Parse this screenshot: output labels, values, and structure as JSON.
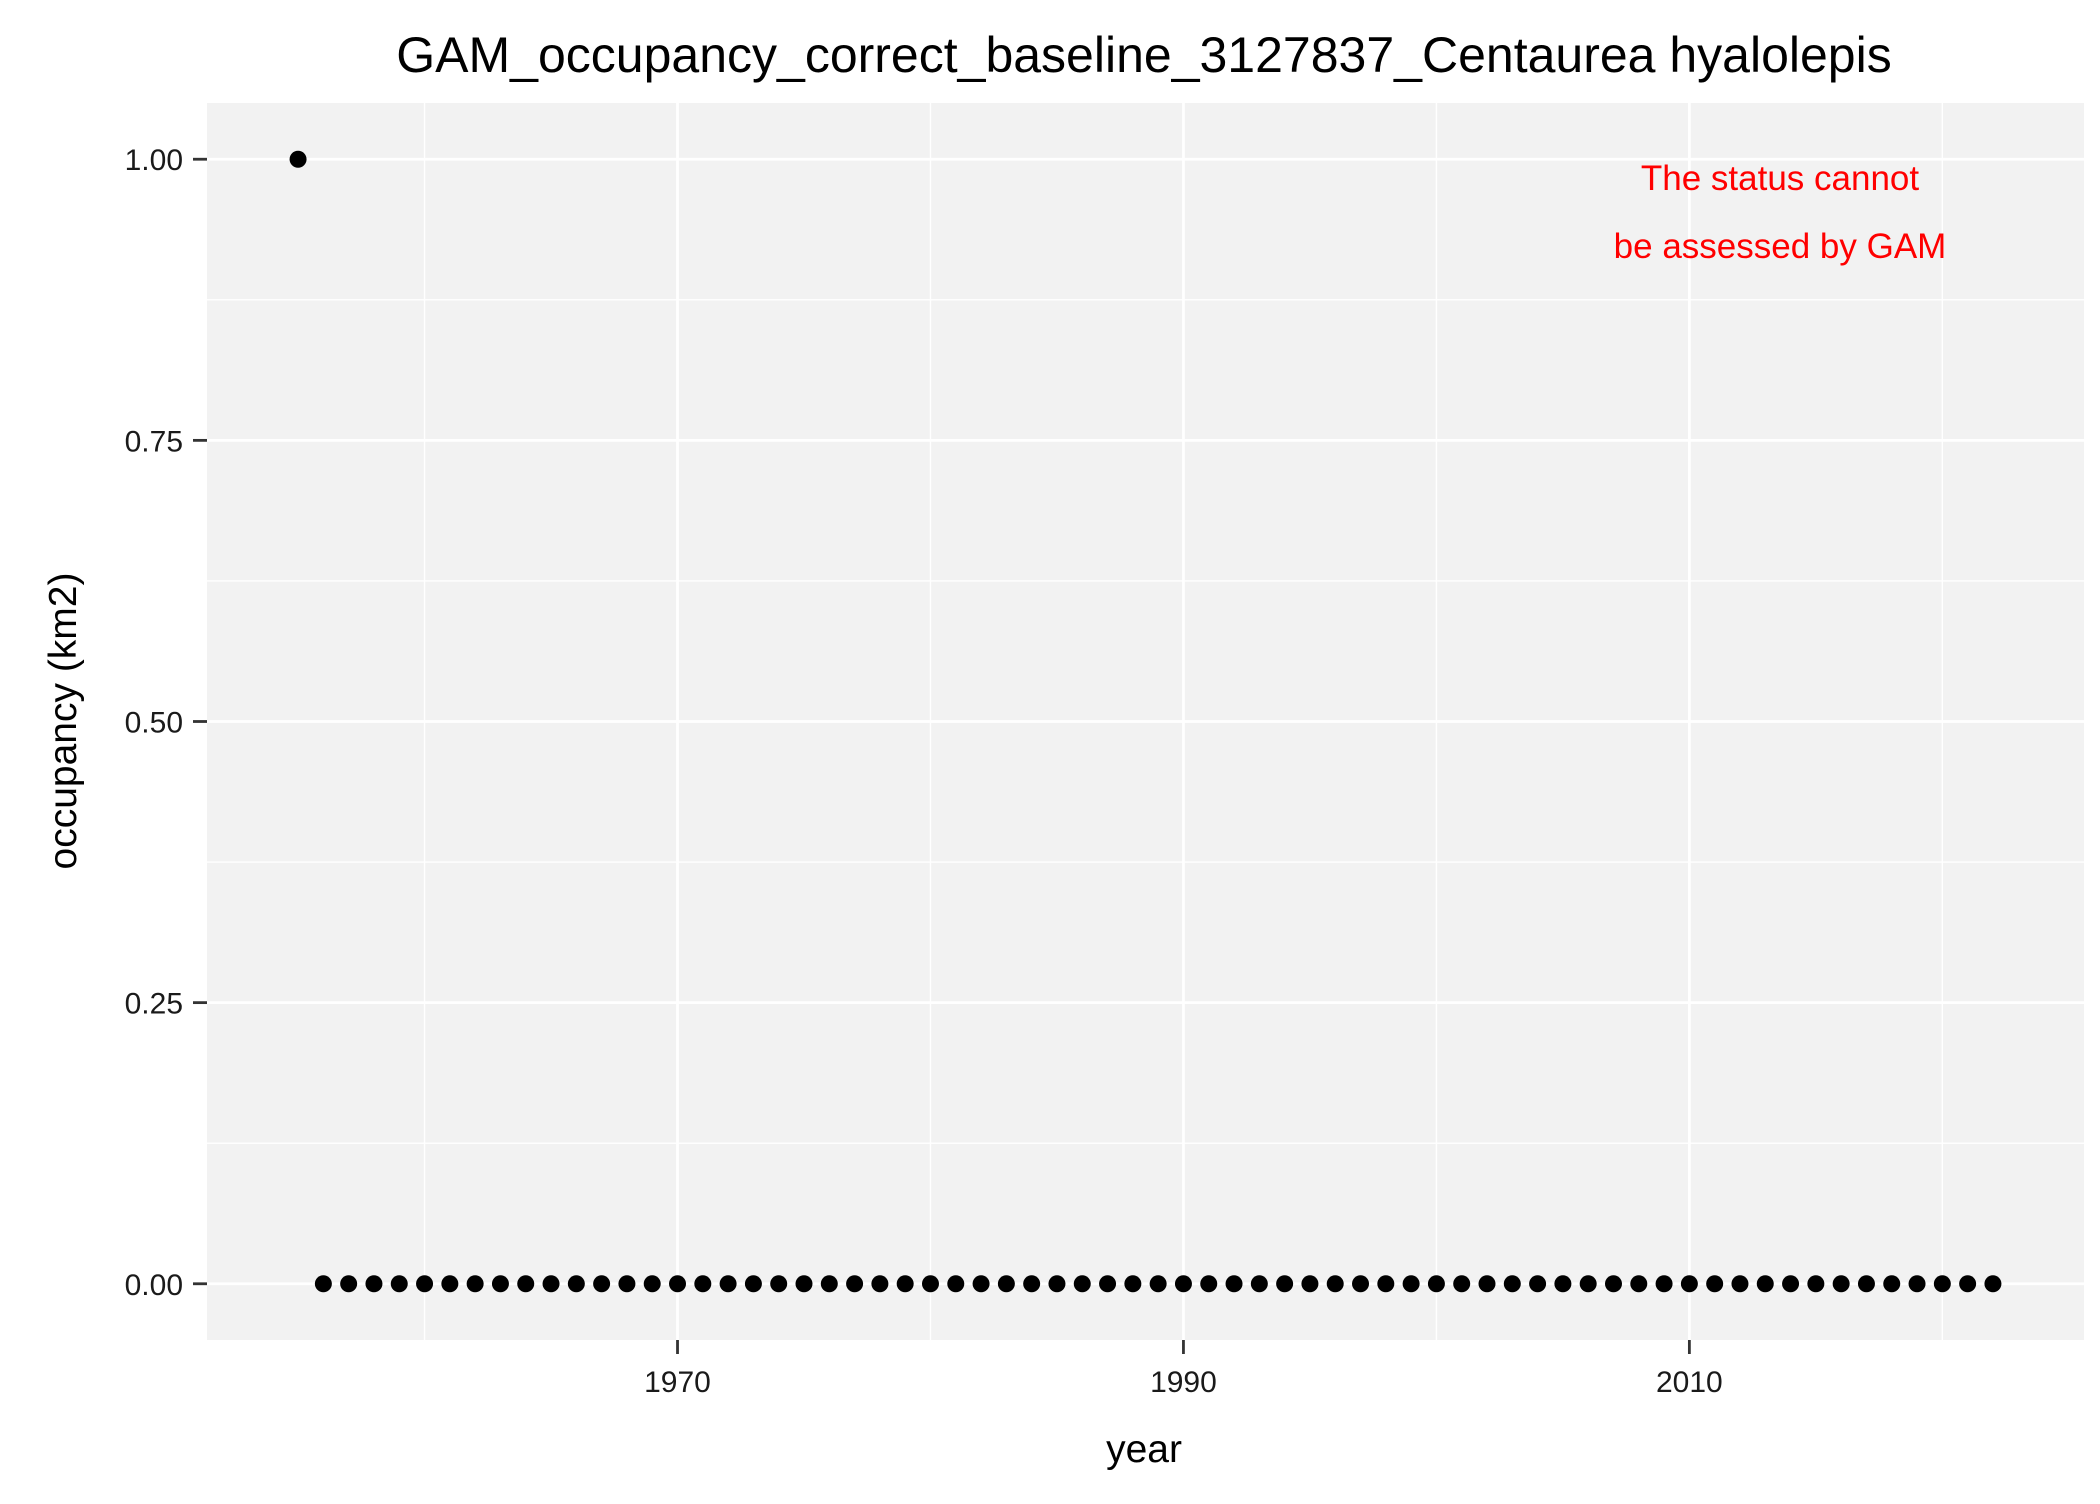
{
  "chart_data": {
    "type": "scatter",
    "title": "GAM_occupancy_correct_baseline_3127837_Centaurea hyalolepis",
    "xlabel": "year",
    "ylabel": "occupancy (km2)",
    "xlim": [
      1951.4,
      2025.6
    ],
    "ylim": [
      -0.05,
      1.05
    ],
    "x_ticks": [
      1970,
      1990,
      2010
    ],
    "x_tick_labels": [
      "1970",
      "1990",
      "2010"
    ],
    "x_minor_ticks": [
      1960,
      1980,
      2000,
      2020
    ],
    "y_ticks": [
      0,
      0.25,
      0.5,
      0.75,
      1
    ],
    "y_tick_labels": [
      "0.00",
      "0.25",
      "0.50",
      "0.75",
      "1.00"
    ],
    "y_minor_ticks": [
      0.125,
      0.375,
      0.625,
      0.875
    ],
    "grid": true,
    "legend": "none",
    "panel_color": "#f2f2f2",
    "grid_color": "#ffffff",
    "point_color": "#000000",
    "annotation": {
      "lines": [
        "The status cannot",
        "be assessed by GAM"
      ],
      "color": "#ff0000"
    },
    "points": [
      {
        "x": 1955,
        "y": 1
      },
      {
        "x": 1956,
        "y": 0
      },
      {
        "x": 1957,
        "y": 0
      },
      {
        "x": 1958,
        "y": 0
      },
      {
        "x": 1959,
        "y": 0
      },
      {
        "x": 1960,
        "y": 0
      },
      {
        "x": 1961,
        "y": 0
      },
      {
        "x": 1962,
        "y": 0
      },
      {
        "x": 1963,
        "y": 0
      },
      {
        "x": 1964,
        "y": 0
      },
      {
        "x": 1965,
        "y": 0
      },
      {
        "x": 1966,
        "y": 0
      },
      {
        "x": 1967,
        "y": 0
      },
      {
        "x": 1968,
        "y": 0
      },
      {
        "x": 1969,
        "y": 0
      },
      {
        "x": 1970,
        "y": 0
      },
      {
        "x": 1971,
        "y": 0
      },
      {
        "x": 1972,
        "y": 0
      },
      {
        "x": 1973,
        "y": 0
      },
      {
        "x": 1974,
        "y": 0
      },
      {
        "x": 1975,
        "y": 0
      },
      {
        "x": 1976,
        "y": 0
      },
      {
        "x": 1977,
        "y": 0
      },
      {
        "x": 1978,
        "y": 0
      },
      {
        "x": 1979,
        "y": 0
      },
      {
        "x": 1980,
        "y": 0
      },
      {
        "x": 1981,
        "y": 0
      },
      {
        "x": 1982,
        "y": 0
      },
      {
        "x": 1983,
        "y": 0
      },
      {
        "x": 1984,
        "y": 0
      },
      {
        "x": 1985,
        "y": 0
      },
      {
        "x": 1986,
        "y": 0
      },
      {
        "x": 1987,
        "y": 0
      },
      {
        "x": 1988,
        "y": 0
      },
      {
        "x": 1989,
        "y": 0
      },
      {
        "x": 1990,
        "y": 0
      },
      {
        "x": 1991,
        "y": 0
      },
      {
        "x": 1992,
        "y": 0
      },
      {
        "x": 1993,
        "y": 0
      },
      {
        "x": 1994,
        "y": 0
      },
      {
        "x": 1995,
        "y": 0
      },
      {
        "x": 1996,
        "y": 0
      },
      {
        "x": 1997,
        "y": 0
      },
      {
        "x": 1998,
        "y": 0
      },
      {
        "x": 1999,
        "y": 0
      },
      {
        "x": 2000,
        "y": 0
      },
      {
        "x": 2001,
        "y": 0
      },
      {
        "x": 2002,
        "y": 0
      },
      {
        "x": 2003,
        "y": 0
      },
      {
        "x": 2004,
        "y": 0
      },
      {
        "x": 2005,
        "y": 0
      },
      {
        "x": 2006,
        "y": 0
      },
      {
        "x": 2007,
        "y": 0
      },
      {
        "x": 2008,
        "y": 0
      },
      {
        "x": 2009,
        "y": 0
      },
      {
        "x": 2010,
        "y": 0
      },
      {
        "x": 2011,
        "y": 0
      },
      {
        "x": 2012,
        "y": 0
      },
      {
        "x": 2013,
        "y": 0
      },
      {
        "x": 2014,
        "y": 0
      },
      {
        "x": 2015,
        "y": 0
      },
      {
        "x": 2016,
        "y": 0
      },
      {
        "x": 2017,
        "y": 0
      },
      {
        "x": 2018,
        "y": 0
      },
      {
        "x": 2019,
        "y": 0
      },
      {
        "x": 2020,
        "y": 0
      },
      {
        "x": 2021,
        "y": 0
      },
      {
        "x": 2022,
        "y": 0
      }
    ]
  }
}
